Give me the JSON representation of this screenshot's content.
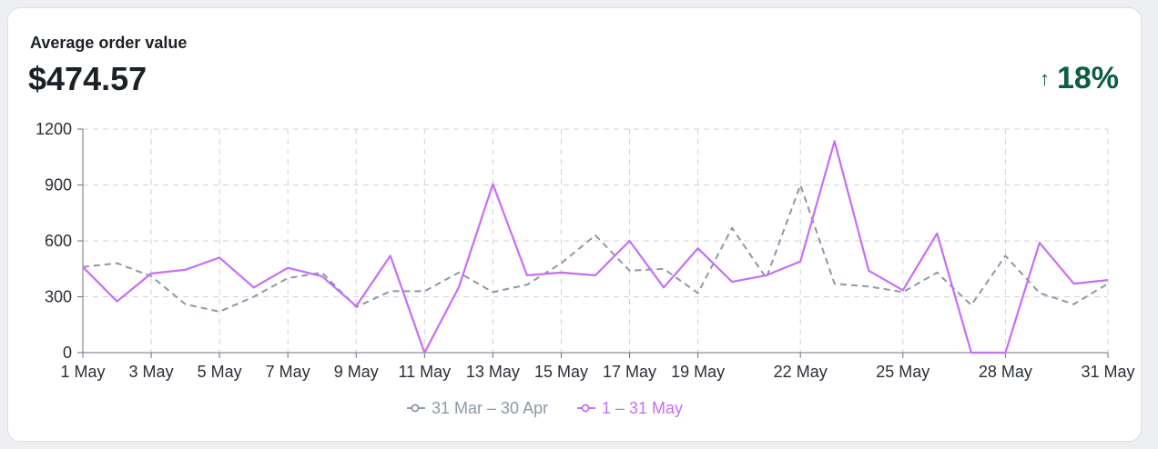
{
  "card": {
    "title": "Average order value",
    "value": "$474.57",
    "change_arrow": "↑",
    "change": "18%",
    "change_color": "#0a5e44"
  },
  "chart_data": {
    "type": "line",
    "title": "",
    "xlabel": "",
    "ylabel": "",
    "ylim": [
      0,
      1200
    ],
    "y_ticks": [
      0,
      300,
      600,
      900,
      1200
    ],
    "x_tick_labels": [
      "1 May",
      "3 May",
      "5 May",
      "7 May",
      "9 May",
      "11 May",
      "13 May",
      "15 May",
      "17 May",
      "19 May",
      "22 May",
      "25 May",
      "28 May",
      "31 May"
    ],
    "x_tick_days": [
      1,
      3,
      5,
      7,
      9,
      11,
      13,
      15,
      17,
      19,
      22,
      25,
      28,
      31
    ],
    "grid": true,
    "legend_position": "bottom-center",
    "series": [
      {
        "name": "31 Mar – 30 Apr",
        "color": "#8a98a8",
        "dashed": true,
        "x": [
          1,
          2,
          3,
          4,
          5,
          6,
          7,
          8,
          9,
          10,
          11,
          12,
          13,
          14,
          15,
          16,
          17,
          18,
          19,
          20,
          21,
          22,
          23,
          24,
          25,
          26,
          27,
          28,
          29,
          30,
          31
        ],
        "values": [
          460,
          480,
          410,
          260,
          220,
          300,
          400,
          430,
          245,
          330,
          330,
          430,
          325,
          365,
          480,
          630,
          440,
          450,
          320,
          670,
          400,
          900,
          370,
          355,
          325,
          430,
          255,
          520,
          320,
          260,
          370
        ]
      },
      {
        "name": "1 – 31 May",
        "color": "#c76ef5",
        "dashed": false,
        "x": [
          1,
          2,
          3,
          4,
          5,
          6,
          7,
          8,
          9,
          10,
          11,
          12,
          13,
          14,
          15,
          16,
          17,
          18,
          19,
          20,
          21,
          22,
          23,
          24,
          25,
          26,
          27,
          28,
          29,
          30,
          31
        ],
        "values": [
          460,
          275,
          425,
          445,
          510,
          350,
          455,
          410,
          250,
          520,
          0,
          350,
          905,
          415,
          430,
          415,
          600,
          350,
          560,
          380,
          415,
          490,
          1135,
          440,
          335,
          640,
          0,
          0,
          590,
          370,
          390
        ]
      }
    ]
  }
}
